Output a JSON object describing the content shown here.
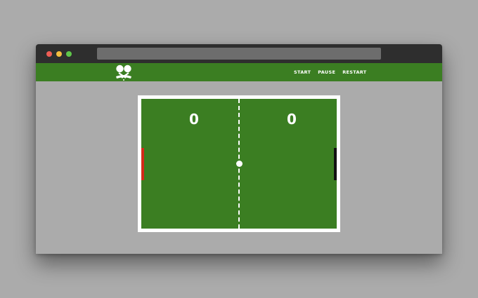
{
  "colors": {
    "page_background": "#ababab",
    "titlebar": "#2e2e2e",
    "url_bar": "#6d6d6d",
    "traffic_red": "#ee5d55",
    "traffic_yellow": "#f5bd3f",
    "traffic_green": "#5fc64a",
    "nav_green": "#3b7e22",
    "field_green": "#3b7e22",
    "table_border": "#ffffff",
    "left_paddle": "#d42a1a",
    "right_paddle": "#111111",
    "ball": "#ffffff"
  },
  "browser": {
    "traffic_lights": [
      "close",
      "minimize",
      "maximize"
    ],
    "url": ""
  },
  "navbar": {
    "logo_icon": "crossed-ping-pong-paddles-icon",
    "menu": [
      {
        "label": "START"
      },
      {
        "label": "PAUSE"
      },
      {
        "label": "RESTART"
      }
    ]
  },
  "game": {
    "score_left": "0",
    "score_right": "0"
  }
}
